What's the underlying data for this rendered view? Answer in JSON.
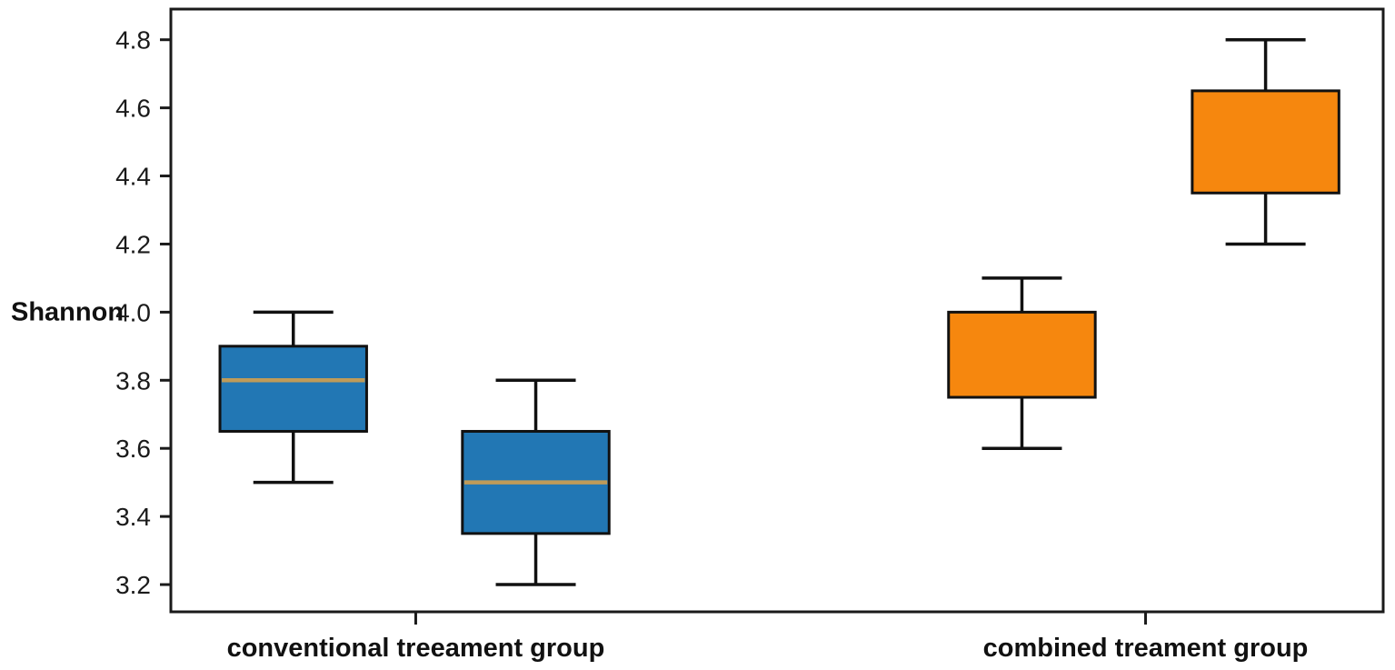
{
  "chart_data": {
    "type": "boxplot",
    "title": "",
    "ylabel": "Shannon",
    "xlabel": "",
    "ylim": [
      3.12,
      4.89
    ],
    "yticks": [
      4.8,
      4.6,
      4.4,
      4.2,
      4.0,
      3.8,
      3.6,
      3.4,
      3.2
    ],
    "grid": false,
    "legend_position": "none",
    "axis_color": "#1a1a1a",
    "plot_bg_color": "#ffffff",
    "median_color": "#bf9b59",
    "box_width_frac": 0.121,
    "groups": [
      {
        "label": "conventional treeament group",
        "tick_frac": 0.202,
        "color": "#2277b4",
        "boxes": [
          {
            "x_frac": 0.101,
            "whisker_low": 3.5,
            "q1": 3.65,
            "median": 3.8,
            "q3": 3.9,
            "whisker_high": 4.0
          },
          {
            "x_frac": 0.301,
            "whisker_low": 3.2,
            "q1": 3.35,
            "median": 3.5,
            "q3": 3.65,
            "whisker_high": 3.8
          }
        ]
      },
      {
        "label": "combined treament group",
        "tick_frac": 0.804,
        "color": "#f6870e",
        "boxes": [
          {
            "x_frac": 0.702,
            "whisker_low": 3.6,
            "q1": 3.75,
            "median": null,
            "q3": 4.0,
            "whisker_high": 4.1
          },
          {
            "x_frac": 0.903,
            "whisker_low": 4.2,
            "q1": 4.35,
            "median": null,
            "q3": 4.65,
            "whisker_high": 4.8
          }
        ]
      }
    ]
  }
}
